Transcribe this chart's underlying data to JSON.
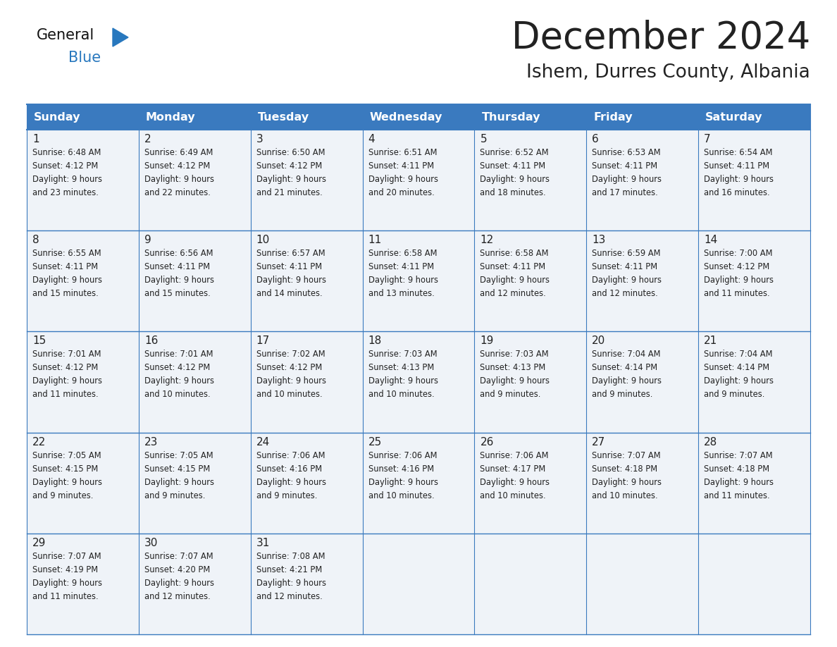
{
  "title": "December 2024",
  "subtitle": "Ishem, Durres County, Albania",
  "header_bg_color": "#3a7abf",
  "header_text_color": "#ffffff",
  "cell_bg_color": "#eff3f8",
  "border_color": "#3a7abf",
  "text_color": "#222222",
  "days_of_week": [
    "Sunday",
    "Monday",
    "Tuesday",
    "Wednesday",
    "Thursday",
    "Friday",
    "Saturday"
  ],
  "calendar": [
    [
      {
        "day": 1,
        "sunrise": "6:48 AM",
        "sunset": "4:12 PM",
        "daylight_hrs": 9,
        "daylight_min": "23 minutes"
      },
      {
        "day": 2,
        "sunrise": "6:49 AM",
        "sunset": "4:12 PM",
        "daylight_hrs": 9,
        "daylight_min": "22 minutes"
      },
      {
        "day": 3,
        "sunrise": "6:50 AM",
        "sunset": "4:12 PM",
        "daylight_hrs": 9,
        "daylight_min": "21 minutes"
      },
      {
        "day": 4,
        "sunrise": "6:51 AM",
        "sunset": "4:11 PM",
        "daylight_hrs": 9,
        "daylight_min": "20 minutes"
      },
      {
        "day": 5,
        "sunrise": "6:52 AM",
        "sunset": "4:11 PM",
        "daylight_hrs": 9,
        "daylight_min": "18 minutes"
      },
      {
        "day": 6,
        "sunrise": "6:53 AM",
        "sunset": "4:11 PM",
        "daylight_hrs": 9,
        "daylight_min": "17 minutes"
      },
      {
        "day": 7,
        "sunrise": "6:54 AM",
        "sunset": "4:11 PM",
        "daylight_hrs": 9,
        "daylight_min": "16 minutes"
      }
    ],
    [
      {
        "day": 8,
        "sunrise": "6:55 AM",
        "sunset": "4:11 PM",
        "daylight_hrs": 9,
        "daylight_min": "15 minutes"
      },
      {
        "day": 9,
        "sunrise": "6:56 AM",
        "sunset": "4:11 PM",
        "daylight_hrs": 9,
        "daylight_min": "15 minutes"
      },
      {
        "day": 10,
        "sunrise": "6:57 AM",
        "sunset": "4:11 PM",
        "daylight_hrs": 9,
        "daylight_min": "14 minutes"
      },
      {
        "day": 11,
        "sunrise": "6:58 AM",
        "sunset": "4:11 PM",
        "daylight_hrs": 9,
        "daylight_min": "13 minutes"
      },
      {
        "day": 12,
        "sunrise": "6:58 AM",
        "sunset": "4:11 PM",
        "daylight_hrs": 9,
        "daylight_min": "12 minutes"
      },
      {
        "day": 13,
        "sunrise": "6:59 AM",
        "sunset": "4:11 PM",
        "daylight_hrs": 9,
        "daylight_min": "12 minutes"
      },
      {
        "day": 14,
        "sunrise": "7:00 AM",
        "sunset": "4:12 PM",
        "daylight_hrs": 9,
        "daylight_min": "11 minutes"
      }
    ],
    [
      {
        "day": 15,
        "sunrise": "7:01 AM",
        "sunset": "4:12 PM",
        "daylight_hrs": 9,
        "daylight_min": "11 minutes"
      },
      {
        "day": 16,
        "sunrise": "7:01 AM",
        "sunset": "4:12 PM",
        "daylight_hrs": 9,
        "daylight_min": "10 minutes"
      },
      {
        "day": 17,
        "sunrise": "7:02 AM",
        "sunset": "4:12 PM",
        "daylight_hrs": 9,
        "daylight_min": "10 minutes"
      },
      {
        "day": 18,
        "sunrise": "7:03 AM",
        "sunset": "4:13 PM",
        "daylight_hrs": 9,
        "daylight_min": "10 minutes"
      },
      {
        "day": 19,
        "sunrise": "7:03 AM",
        "sunset": "4:13 PM",
        "daylight_hrs": 9,
        "daylight_min": "9 minutes"
      },
      {
        "day": 20,
        "sunrise": "7:04 AM",
        "sunset": "4:14 PM",
        "daylight_hrs": 9,
        "daylight_min": "9 minutes"
      },
      {
        "day": 21,
        "sunrise": "7:04 AM",
        "sunset": "4:14 PM",
        "daylight_hrs": 9,
        "daylight_min": "9 minutes"
      }
    ],
    [
      {
        "day": 22,
        "sunrise": "7:05 AM",
        "sunset": "4:15 PM",
        "daylight_hrs": 9,
        "daylight_min": "9 minutes"
      },
      {
        "day": 23,
        "sunrise": "7:05 AM",
        "sunset": "4:15 PM",
        "daylight_hrs": 9,
        "daylight_min": "9 minutes"
      },
      {
        "day": 24,
        "sunrise": "7:06 AM",
        "sunset": "4:16 PM",
        "daylight_hrs": 9,
        "daylight_min": "9 minutes"
      },
      {
        "day": 25,
        "sunrise": "7:06 AM",
        "sunset": "4:16 PM",
        "daylight_hrs": 9,
        "daylight_min": "10 minutes"
      },
      {
        "day": 26,
        "sunrise": "7:06 AM",
        "sunset": "4:17 PM",
        "daylight_hrs": 9,
        "daylight_min": "10 minutes"
      },
      {
        "day": 27,
        "sunrise": "7:07 AM",
        "sunset": "4:18 PM",
        "daylight_hrs": 9,
        "daylight_min": "10 minutes"
      },
      {
        "day": 28,
        "sunrise": "7:07 AM",
        "sunset": "4:18 PM",
        "daylight_hrs": 9,
        "daylight_min": "11 minutes"
      }
    ],
    [
      {
        "day": 29,
        "sunrise": "7:07 AM",
        "sunset": "4:19 PM",
        "daylight_hrs": 9,
        "daylight_min": "11 minutes"
      },
      {
        "day": 30,
        "sunrise": "7:07 AM",
        "sunset": "4:20 PM",
        "daylight_hrs": 9,
        "daylight_min": "12 minutes"
      },
      {
        "day": 31,
        "sunrise": "7:08 AM",
        "sunset": "4:21 PM",
        "daylight_hrs": 9,
        "daylight_min": "12 minutes"
      },
      null,
      null,
      null,
      null
    ]
  ],
  "logo_text1": "General",
  "logo_text2": "Blue",
  "logo_color1": "#111111",
  "logo_color2": "#2878be",
  "logo_triangle_color": "#2878be",
  "fig_width": 11.88,
  "fig_height": 9.18,
  "dpi": 100
}
